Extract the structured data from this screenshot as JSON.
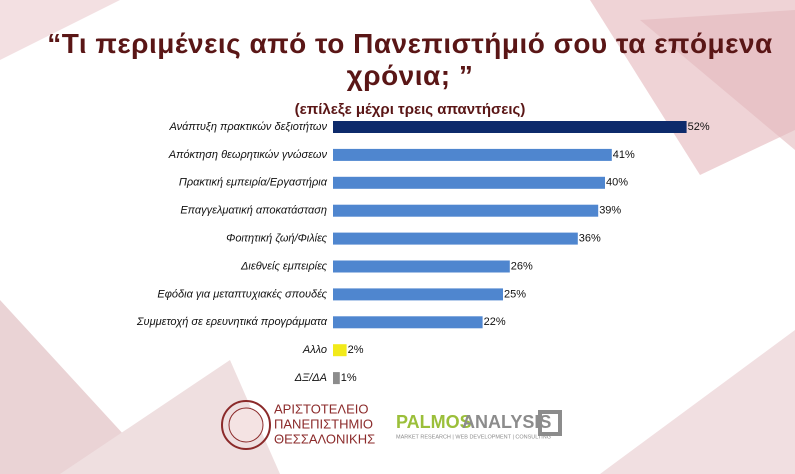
{
  "chart_data": {
    "type": "bar",
    "orientation": "horizontal",
    "title": "“Τι περιμένεις από το Πανεπιστήμιό σου τα επόμενα χρόνια; ”",
    "subtitle": "(επίλεξε μέχρι τρεις απαντήσεις)",
    "categories": [
      "Ανάπτυξη πρακτικών δεξιοτήτων",
      "Απόκτηση θεωρητικών γνώσεων",
      "Πρακτική εμπειρία/Εργαστήρια",
      "Επαγγελματική αποκατάσταση",
      "Φοιτητική ζωή/Φιλίες",
      "Διεθνείς εμπειρίες",
      "Εφόδια για μεταπτυχιακές σπουδές",
      "Συμμετοχή σε ερευνητικά προγράμματα",
      "Αλλο",
      "ΔΞ/ΔΑ"
    ],
    "values": [
      52,
      41,
      40,
      39,
      36,
      26,
      25,
      22,
      2,
      1
    ],
    "value_labels": [
      "52%",
      "41%",
      "40%",
      "39%",
      "36%",
      "26%",
      "25%",
      "22%",
      "2%",
      "1%"
    ],
    "colors": [
      "#0d2a6b",
      "#4f86cf",
      "#4f86cf",
      "#4f86cf",
      "#4f86cf",
      "#4f86cf",
      "#4f86cf",
      "#4f86cf",
      "#f2ea1a",
      "#8c8c8c"
    ]
  },
  "logos": {
    "university": [
      "ΑΡΙΣΤΟΤΕΛΕΙΟ",
      "ΠΑΝΕΠΙΣΤΗΜΙΟ",
      "ΘΕΣΣΑΛΟΝΙΚΗΣ"
    ],
    "company_a": "PALMOS",
    "company_b": "ANALYSIS",
    "company_tagline": "MARKET RESEARCH | WEB DEVELOPMENT | CONSULTING"
  }
}
